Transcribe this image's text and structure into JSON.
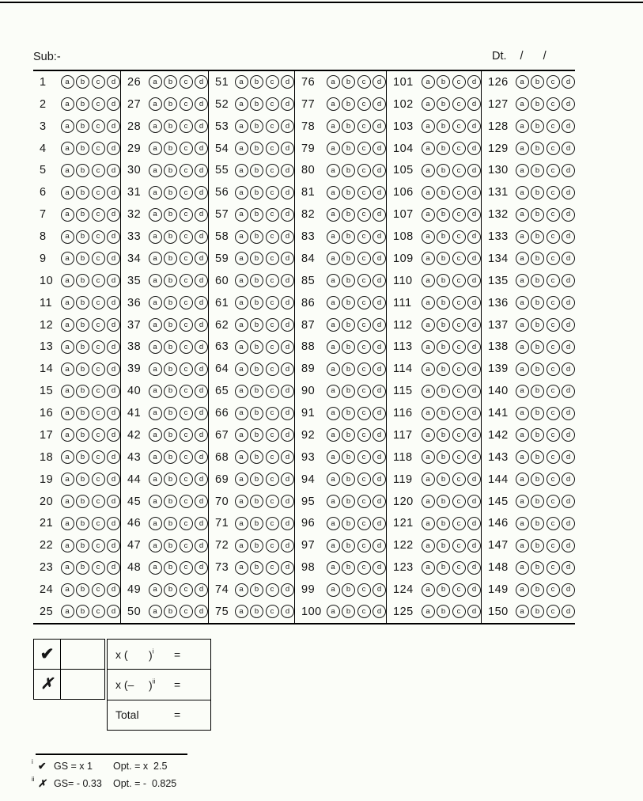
{
  "colors": {
    "ink": "#161616",
    "background": "#fbfdf8",
    "line": "#000000"
  },
  "header": {
    "subject_label": "Sub:-",
    "date_label": "Dt.",
    "slash1": "/",
    "slash2": "/"
  },
  "sheet": {
    "options": [
      "a",
      "b",
      "c",
      "d"
    ],
    "columns": [
      {
        "start": 1,
        "end": 25
      },
      {
        "start": 26,
        "end": 50
      },
      {
        "start": 51,
        "end": 75
      },
      {
        "start": 76,
        "end": 100
      },
      {
        "start": 101,
        "end": 125
      },
      {
        "start": 126,
        "end": 150
      }
    ]
  },
  "scoring": {
    "correct_symbol": "✔",
    "wrong_symbol": "✗",
    "correct_count_value": "",
    "wrong_count_value": "",
    "row1": {
      "open": "x (",
      "close": ")",
      "sup": "i",
      "equals": "="
    },
    "row2": {
      "open": "x (–",
      "close": ")",
      "sup": "ii",
      "equals": "="
    },
    "total": {
      "label": "Total",
      "equals": "="
    }
  },
  "footnotes": [
    {
      "sup": "i",
      "symbol": "✔",
      "gs": "GS = x 1",
      "opt": "Opt. = x  2.5"
    },
    {
      "sup": "ii",
      "symbol": "✗",
      "gs": "GS= - 0.33",
      "opt": "Opt. = -  0.825"
    }
  ]
}
